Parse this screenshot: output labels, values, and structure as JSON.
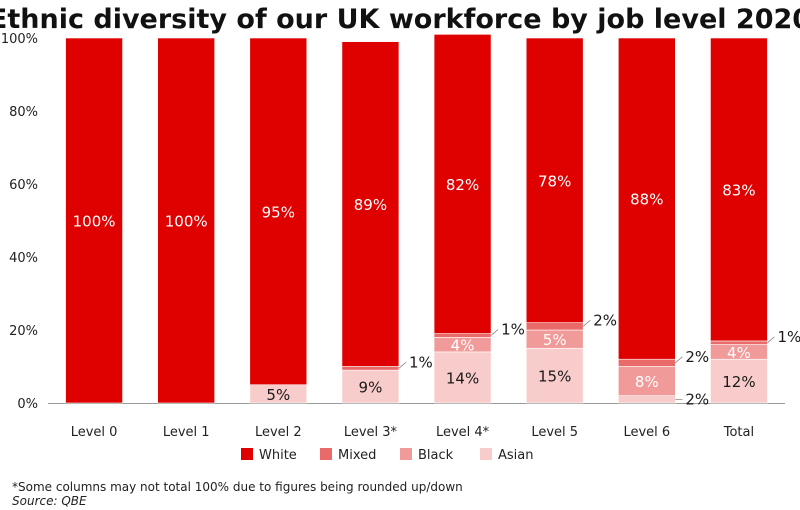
{
  "chart_data": {
    "type": "bar",
    "stacked": true,
    "title": "Ethnic diversity of our UK workforce by job level 2020",
    "categories": [
      "Level 0",
      "Level 1",
      "Level 2",
      "Level 3*",
      "Level 4*",
      "Level 5",
      "Level 6",
      "Total"
    ],
    "series": [
      {
        "name": "Asian",
        "values": [
          0,
          0,
          5,
          9,
          14,
          15,
          2,
          12
        ],
        "color": "#f9cccc"
      },
      {
        "name": "Black",
        "values": [
          0,
          0,
          0,
          0,
          4,
          5,
          8,
          4
        ],
        "color": "#f19a9a"
      },
      {
        "name": "Mixed",
        "values": [
          0,
          0,
          0,
          1,
          1,
          2,
          2,
          1
        ],
        "color": "#ea6a6a"
      },
      {
        "name": "White",
        "values": [
          100,
          100,
          95,
          89,
          82,
          78,
          88,
          83
        ],
        "color": "#df0000"
      }
    ],
    "yticks": [
      "0%",
      "20%",
      "40%",
      "60%",
      "80%",
      "100%"
    ],
    "ylim": [
      0,
      100
    ],
    "legend_order": [
      "White",
      "Mixed",
      "Black",
      "Asian"
    ],
    "legend_position": "bottom",
    "grid": false
  },
  "footnote": "*Some columns may not total 100% due to figures being rounded up/down",
  "source": "Source: QBE"
}
